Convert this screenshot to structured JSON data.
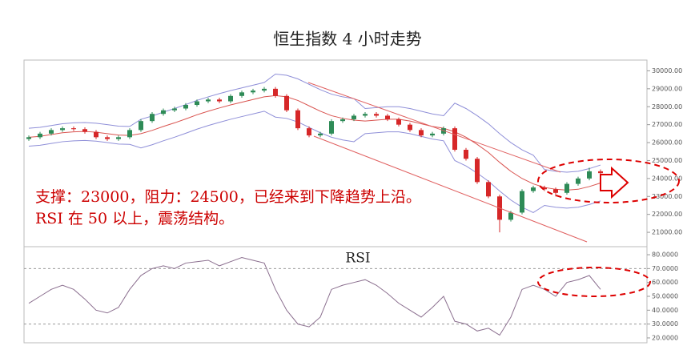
{
  "chart_data": [
    {
      "type": "candlestick",
      "title": "恒生指数 4 小时走势",
      "annotation": [
        "支撑：23000，阻力：24500，已经来到下降趋势上沿。",
        "RSI 在 50 以上，震荡结构。"
      ],
      "up_color": "#2e8b57",
      "down_color": "#d62728",
      "open": [
        26200,
        26300,
        26500,
        26700,
        26800,
        26750,
        26600,
        26300,
        26200,
        26300,
        26700,
        27200,
        27600,
        27800,
        27900,
        28100,
        28300,
        28400,
        28300,
        28600,
        28800,
        28900,
        29000,
        28600,
        27800,
        26800,
        26400,
        26500,
        27200,
        27300,
        27500,
        27600,
        27500,
        27300,
        27000,
        26700,
        26400,
        26500,
        26800,
        25600,
        25100,
        23800,
        23000,
        21700,
        22100,
        23300,
        23500,
        23400,
        23200,
        23700,
        24000,
        24400
      ],
      "high": [
        26400,
        26600,
        26800,
        26900,
        26900,
        26850,
        26700,
        26400,
        26400,
        26800,
        27300,
        27700,
        27900,
        28000,
        28200,
        28400,
        28500,
        28500,
        28700,
        28900,
        29000,
        29100,
        29100,
        28700,
        27900,
        26900,
        26600,
        27300,
        27400,
        27600,
        27700,
        27700,
        27600,
        27400,
        27100,
        26800,
        26600,
        26900,
        26900,
        25700,
        25200,
        23900,
        23100,
        22200,
        23400,
        23600,
        23600,
        23500,
        23800,
        24100,
        24600,
        24500
      ],
      "low": [
        26100,
        26200,
        26400,
        26600,
        26650,
        26500,
        26200,
        26100,
        26100,
        26200,
        26600,
        27100,
        27500,
        27700,
        27800,
        28000,
        28200,
        28200,
        28200,
        28500,
        28700,
        28800,
        28500,
        27700,
        26700,
        26300,
        26300,
        26400,
        27100,
        27200,
        27400,
        27400,
        27200,
        26900,
        26600,
        26300,
        26300,
        26400,
        25500,
        25000,
        23700,
        22900,
        21000,
        21600,
        22000,
        23200,
        23300,
        23000,
        23100,
        23600,
        23900,
        24200
      ],
      "close": [
        26300,
        26500,
        26700,
        26800,
        26750,
        26600,
        26300,
        26200,
        26300,
        26700,
        27200,
        27600,
        27800,
        27900,
        28100,
        28300,
        28400,
        28300,
        28600,
        28800,
        28900,
        29000,
        28600,
        27800,
        26800,
        26400,
        26500,
        27200,
        27300,
        27500,
        27600,
        27500,
        27300,
        27000,
        26700,
        26400,
        26500,
        26800,
        25600,
        25100,
        23800,
        23000,
        21700,
        22100,
        23300,
        23500,
        23400,
        23200,
        23700,
        24000,
        24400,
        24300
      ],
      "series": [
        {
          "color": "#8f8fd8",
          "values": [
            26800,
            26850,
            26950,
            27050,
            27100,
            27120,
            27080,
            27000,
            26920,
            26900,
            27300,
            27480,
            27700,
            27900,
            28120,
            28350,
            28550,
            28730,
            28900,
            29050,
            29200,
            29350,
            29820,
            29750,
            29550,
            29250,
            28950,
            28700,
            28550,
            28450,
            27900,
            27950,
            28000,
            28000,
            27900,
            27750,
            27600,
            27500,
            28200,
            27900,
            27500,
            27050,
            26500,
            26000,
            25600,
            25300,
            24500,
            24400,
            24350,
            24400,
            24550,
            24750
          ]
        },
        {
          "color": "#d9534f",
          "values": [
            26300,
            26350,
            26450,
            26550,
            26600,
            26620,
            26580,
            26500,
            26420,
            26400,
            26500,
            26680,
            26900,
            27100,
            27320,
            27550,
            27750,
            27930,
            28100,
            28250,
            28400,
            28550,
            28620,
            28550,
            28350,
            28050,
            27750,
            27500,
            27350,
            27250,
            27200,
            27250,
            27300,
            27300,
            27200,
            27050,
            26900,
            26800,
            26600,
            26300,
            25900,
            25450,
            24900,
            24400,
            24000,
            23700,
            23500,
            23400,
            23350,
            23400,
            23550,
            23750
          ]
        },
        {
          "color": "#8f8fd8",
          "values": [
            25800,
            25850,
            25950,
            26050,
            26100,
            26120,
            26080,
            26000,
            25920,
            25900,
            25700,
            25880,
            26100,
            26300,
            26520,
            26750,
            26950,
            27130,
            27300,
            27450,
            27600,
            27750,
            27420,
            27350,
            27150,
            26850,
            26550,
            26300,
            26150,
            26050,
            26500,
            26550,
            26600,
            26600,
            26500,
            26350,
            26200,
            26100,
            25000,
            24700,
            24300,
            23850,
            23300,
            22800,
            22400,
            22100,
            22500,
            22400,
            22350,
            22400,
            22550,
            22750
          ]
        }
      ],
      "ylim": [
        20200,
        30600
      ],
      "yticks": [
        {
          "value": 21000,
          "label": "21000.00"
        },
        {
          "value": 22000,
          "label": "22000.00"
        },
        {
          "value": 23000,
          "label": "23000.00"
        },
        {
          "value": 24000,
          "label": "24000.00"
        },
        {
          "value": 25000,
          "label": "25000.00"
        },
        {
          "value": 26000,
          "label": "26000.00"
        },
        {
          "value": 27000,
          "label": "27000.00"
        },
        {
          "value": 28000,
          "label": "28000.00"
        },
        {
          "value": 29000,
          "label": "29000.00"
        },
        {
          "value": 30000,
          "label": "30000.00"
        }
      ]
    },
    {
      "type": "line",
      "title": "RSI",
      "color": "#8b6f8f",
      "values": [
        45,
        50,
        55,
        58,
        55,
        48,
        40,
        38,
        42,
        55,
        65,
        70,
        72,
        70,
        74,
        75,
        76,
        72,
        75,
        78,
        76,
        74,
        55,
        40,
        30,
        28,
        35,
        55,
        58,
        60,
        62,
        58,
        52,
        45,
        40,
        35,
        42,
        50,
        32,
        30,
        25,
        27,
        22,
        35,
        55,
        58,
        55,
        50,
        60,
        62,
        65,
        55
      ],
      "ref_lines": [
        70,
        30
      ],
      "ylim": [
        16.5,
        85.8
      ],
      "yticks": [
        {
          "value": 20,
          "label": "20.0000"
        },
        {
          "value": 30,
          "label": "30.0000"
        },
        {
          "value": 40,
          "label": "40.0000"
        },
        {
          "value": 50,
          "label": "50.0000"
        },
        {
          "value": 60,
          "label": "60.0000"
        },
        {
          "value": 70,
          "label": "70.0000"
        },
        {
          "value": 80,
          "label": "80.0000"
        }
      ]
    }
  ]
}
